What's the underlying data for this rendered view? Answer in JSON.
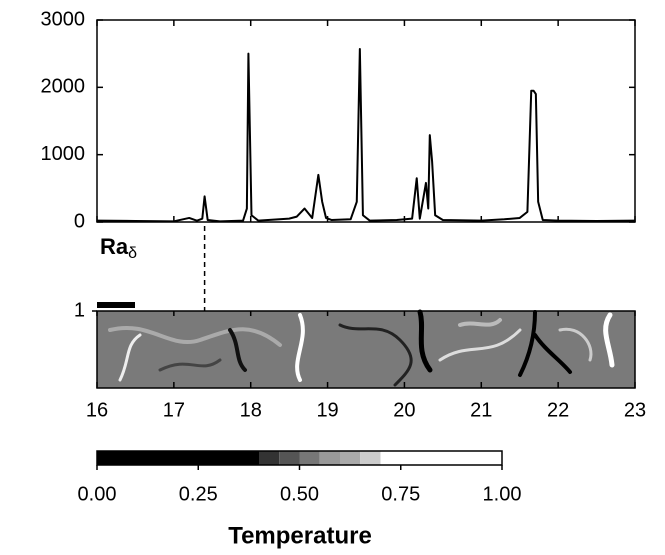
{
  "chart_data": {
    "type": "line",
    "x": [
      16.0,
      16.5,
      17.0,
      17.2,
      17.3,
      17.37,
      17.4,
      17.44,
      17.6,
      17.9,
      17.95,
      17.97,
      18.01,
      18.1,
      18.5,
      18.6,
      18.7,
      18.8,
      18.88,
      18.93,
      18.98,
      19.05,
      19.3,
      19.38,
      19.42,
      19.46,
      19.55,
      19.9,
      20.1,
      20.16,
      20.2,
      20.28,
      20.31,
      20.33,
      20.36,
      20.4,
      20.5,
      21.0,
      21.3,
      21.5,
      21.6,
      21.65,
      21.68,
      21.71,
      21.74,
      21.8,
      22.0,
      22.5,
      23.0
    ],
    "values": [
      20,
      15,
      10,
      60,
      20,
      50,
      380,
      30,
      10,
      20,
      200,
      2500,
      100,
      20,
      50,
      80,
      200,
      60,
      700,
      300,
      60,
      30,
      40,
      300,
      2570,
      100,
      20,
      30,
      50,
      650,
      50,
      580,
      200,
      1290,
      900,
      100,
      30,
      20,
      40,
      60,
      150,
      1950,
      1950,
      1900,
      300,
      30,
      20,
      15,
      20
    ],
    "color": "#000000",
    "xlim": [
      16,
      23
    ],
    "xticks": [
      16,
      17,
      18,
      19,
      20,
      21,
      22,
      23
    ],
    "ylim": [
      0,
      3000
    ],
    "yticks": [
      0,
      1000,
      2000,
      3000
    ],
    "y_label": {
      "text": "Ra",
      "sub": "δ"
    },
    "marker_x": 17.4,
    "field": {
      "ylim": [
        0,
        1
      ],
      "yticks": [
        1
      ]
    },
    "colorbar": {
      "title": "Temperature",
      "xlim": [
        0,
        1
      ],
      "xticks": [
        {
          "value": 0,
          "label": "0.00"
        },
        {
          "value": 0.25,
          "label": "0.25"
        },
        {
          "value": 0.5,
          "label": "0.50"
        },
        {
          "value": 0.75,
          "label": "0.75"
        },
        {
          "value": 1,
          "label": "1.00"
        }
      ],
      "bounds": [
        0,
        0.4,
        0.45,
        0.5,
        0.55,
        0.6,
        0.65,
        0.7,
        1
      ],
      "colors": [
        "#000000",
        "#333333",
        "#555555",
        "#777777",
        "#999999",
        "#aaaaaa",
        "#cccccc",
        "#ffffff"
      ]
    }
  }
}
